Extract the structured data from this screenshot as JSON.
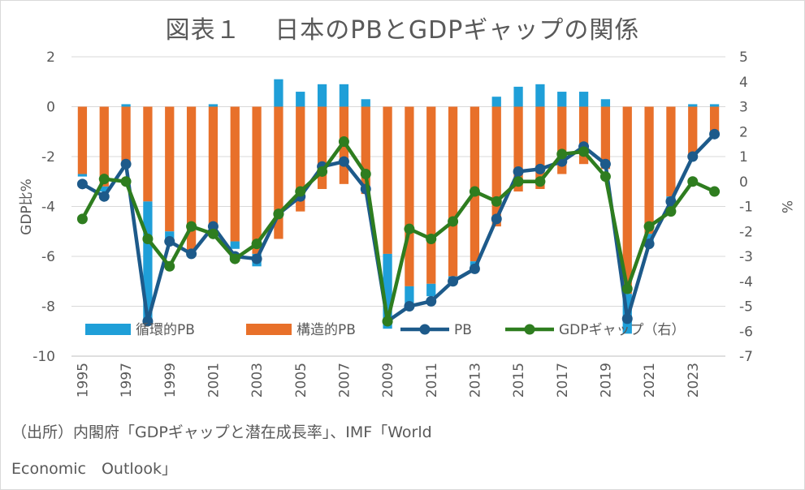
{
  "title": "図表１　 日本のPBとGDPギャップの関係",
  "source": {
    "line1": "（出所）内閣府「GDPギャップと潜在成長率」、IMF「World",
    "line2": "Economic　Outlook」"
  },
  "colors": {
    "cyclical": "#1f9fd8",
    "structural": "#e8702a",
    "pb": "#1d5a8a",
    "gap": "#2e7d1f",
    "grid": "#d9d9d9",
    "text": "#595959"
  },
  "chart_data": {
    "type": "bar",
    "categories": [
      "1995",
      "1996",
      "1997",
      "1998",
      "1999",
      "2000",
      "2001",
      "2002",
      "2003",
      "2004",
      "2005",
      "2006",
      "2007",
      "2008",
      "2009",
      "2010",
      "2011",
      "2012",
      "2013",
      "2014",
      "2015",
      "2016",
      "2017",
      "2018",
      "2019",
      "2020",
      "2021",
      "2022",
      "2023",
      "2024"
    ],
    "x_tick_labels": [
      "1995",
      "1997",
      "1999",
      "2001",
      "2003",
      "2005",
      "2007",
      "2009",
      "2011",
      "2013",
      "2015",
      "2017",
      "2019",
      "2021",
      "2023"
    ],
    "ylabel": "GDP比%",
    "y2label": "%",
    "ylim": [
      -10,
      2
    ],
    "y_ticks": [
      2,
      0,
      -2,
      -4,
      -6,
      -8,
      -10
    ],
    "y2lim": [
      -7,
      5
    ],
    "y2_ticks": [
      5,
      4,
      3,
      2,
      1,
      0,
      -1,
      -2,
      -3,
      -4,
      -5,
      -6,
      -7
    ],
    "grid": true,
    "stacked": true,
    "legend_position": "bottom-inside",
    "series": [
      {
        "name": "循環的PB",
        "kind": "bar",
        "axis": "left",
        "values": [
          -0.1,
          -0.2,
          0.1,
          -4.9,
          -0.4,
          -0.2,
          0.1,
          -0.3,
          -0.5,
          1.1,
          0.6,
          0.9,
          0.9,
          0.3,
          -3.0,
          -0.8,
          -0.5,
          -0.2,
          -0.3,
          0.4,
          0.8,
          0.9,
          0.6,
          0.6,
          0.3,
          -1.6,
          -0.5,
          -0.2,
          0.1,
          0.1
        ]
      },
      {
        "name": "構造的PB",
        "kind": "bar",
        "axis": "left",
        "values": [
          -2.7,
          -3.2,
          -2.3,
          -3.8,
          -5.0,
          -5.8,
          -4.7,
          -5.4,
          -5.9,
          -5.3,
          -4.2,
          -3.3,
          -3.1,
          -3.5,
          -5.9,
          -7.2,
          -7.1,
          -6.8,
          -6.2,
          -4.8,
          -3.4,
          -3.3,
          -2.7,
          -2.3,
          -2.5,
          -7.5,
          -5.1,
          -3.6,
          -2.0,
          -1.1
        ]
      },
      {
        "name": "PB",
        "kind": "line",
        "axis": "left",
        "values": [
          -3.1,
          -3.6,
          -2.3,
          -8.6,
          -5.4,
          -5.9,
          -4.8,
          -6.0,
          -6.1,
          -4.3,
          -3.6,
          -2.4,
          -2.2,
          -3.3,
          -8.6,
          -8.0,
          -7.8,
          -7.0,
          -6.5,
          -4.5,
          -2.6,
          -2.5,
          -2.2,
          -1.6,
          -2.3,
          -8.5,
          -5.5,
          -3.8,
          -2.0,
          -1.1
        ]
      },
      {
        "name": "GDPギャップ（右）",
        "kind": "line",
        "axis": "right",
        "values": [
          -1.5,
          0.1,
          0.0,
          -2.3,
          -3.4,
          -1.8,
          -2.1,
          -3.1,
          -2.5,
          -1.3,
          -0.4,
          0.4,
          1.6,
          0.3,
          -5.6,
          -1.9,
          -2.3,
          -1.6,
          -0.4,
          -0.8,
          0.0,
          0.0,
          1.1,
          1.2,
          0.2,
          -4.3,
          -1.8,
          -1.2,
          0.0,
          -0.4
        ]
      }
    ]
  }
}
